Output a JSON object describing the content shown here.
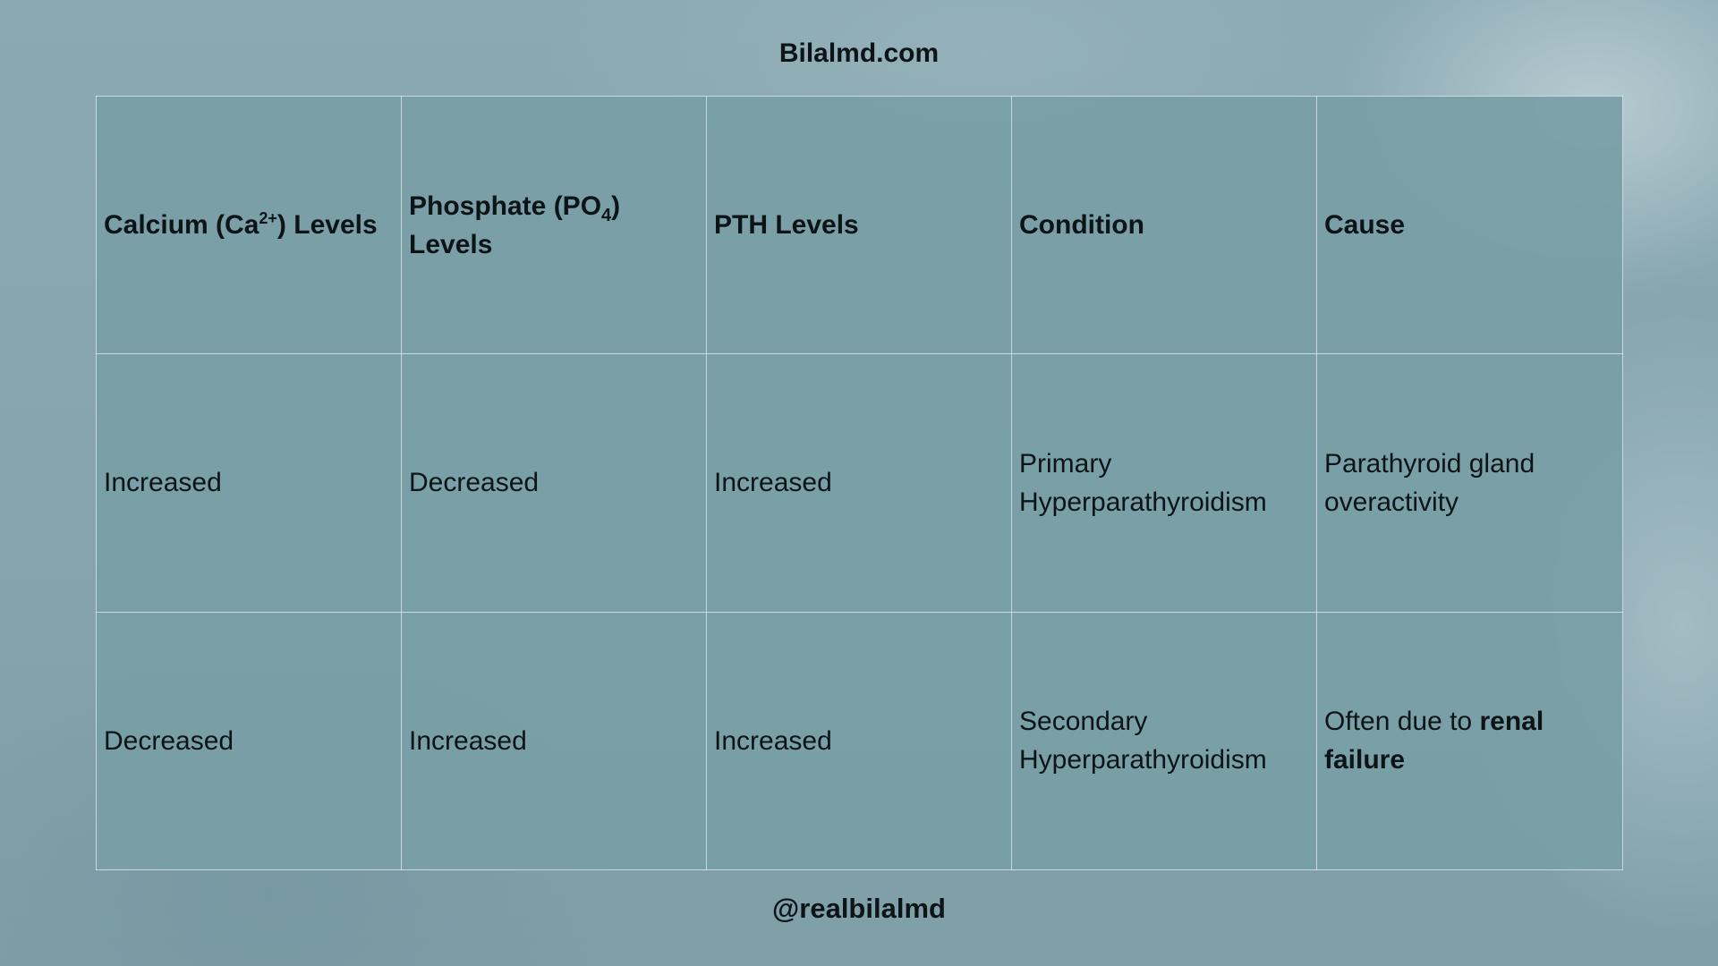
{
  "header": {
    "site_title": "Bilalmd.com"
  },
  "footer": {
    "handle": "@realbilalmd"
  },
  "table": {
    "columns": [
      {
        "main": "Calcium (Ca",
        "sup": "2+",
        "tail": ") Levels"
      },
      {
        "main": "Phosphate (PO",
        "sub": "4",
        "tail": ") Levels"
      },
      {
        "main": "PTH Levels"
      },
      {
        "main": "Condition"
      },
      {
        "main": "Cause"
      }
    ],
    "rows": [
      {
        "calcium": "Increased",
        "phosphate": "Decreased",
        "pth": "Increased",
        "condition": "Primary Hyperparathyroidism",
        "cause_plain": "Parathyroid gland overactivity",
        "cause_bold": ""
      },
      {
        "calcium": "Decreased",
        "phosphate": "Increased",
        "pth": "Increased",
        "condition": "Secondary Hyperparathyroidism",
        "cause_plain": "Often due to ",
        "cause_bold": "renal failure"
      }
    ]
  }
}
